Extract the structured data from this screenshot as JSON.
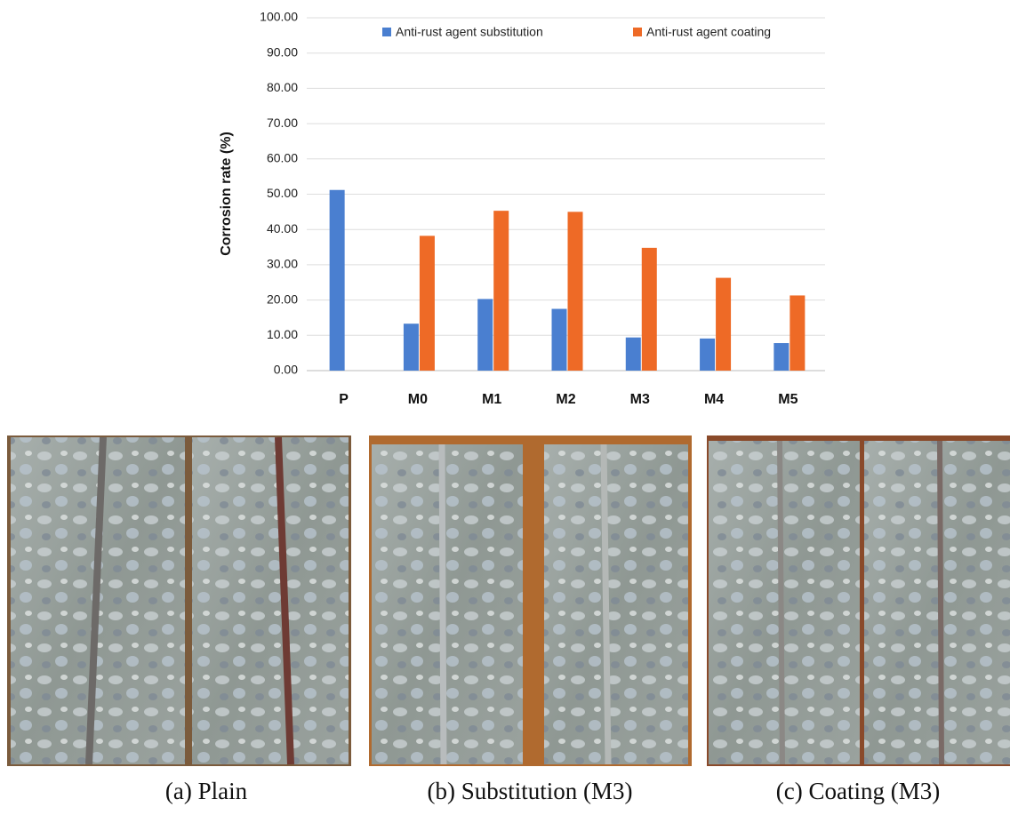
{
  "chart_data": {
    "type": "bar",
    "y_label": "Corrosion rate (%)",
    "categories": [
      "P",
      "M0",
      "M1",
      "M2",
      "M3",
      "M4",
      "M5"
    ],
    "series": [
      {
        "name": "Anti-rust agent substitution",
        "color": "#4a7fd0",
        "values": [
          51.2,
          13.3,
          20.3,
          17.5,
          9.4,
          9.1,
          7.8
        ]
      },
      {
        "name": "Anti-rust agent coating",
        "color": "#ee6a26",
        "values": [
          null,
          38.2,
          45.3,
          45.0,
          34.8,
          26.3,
          21.3
        ]
      }
    ],
    "ylim": [
      0,
      100
    ],
    "yticks": [
      {
        "value": 0,
        "label": "0.00"
      },
      {
        "value": 10,
        "label": "10.00"
      },
      {
        "value": 20,
        "label": "20.00"
      },
      {
        "value": 30,
        "label": "30.00"
      },
      {
        "value": 40,
        "label": "40.00"
      },
      {
        "value": 50,
        "label": "50.00"
      },
      {
        "value": 60,
        "label": "60.00"
      },
      {
        "value": 70,
        "label": "70.00"
      },
      {
        "value": 80,
        "label": "80.00"
      },
      {
        "value": 90,
        "label": "90.00"
      },
      {
        "value": 100,
        "label": "100.00"
      }
    ],
    "grid": true,
    "legend": "top"
  },
  "panels": [
    {
      "caption": "(a) Plain"
    },
    {
      "caption": "(b) Substitution (M3)"
    },
    {
      "caption": "(c) Coating (M3)"
    }
  ]
}
